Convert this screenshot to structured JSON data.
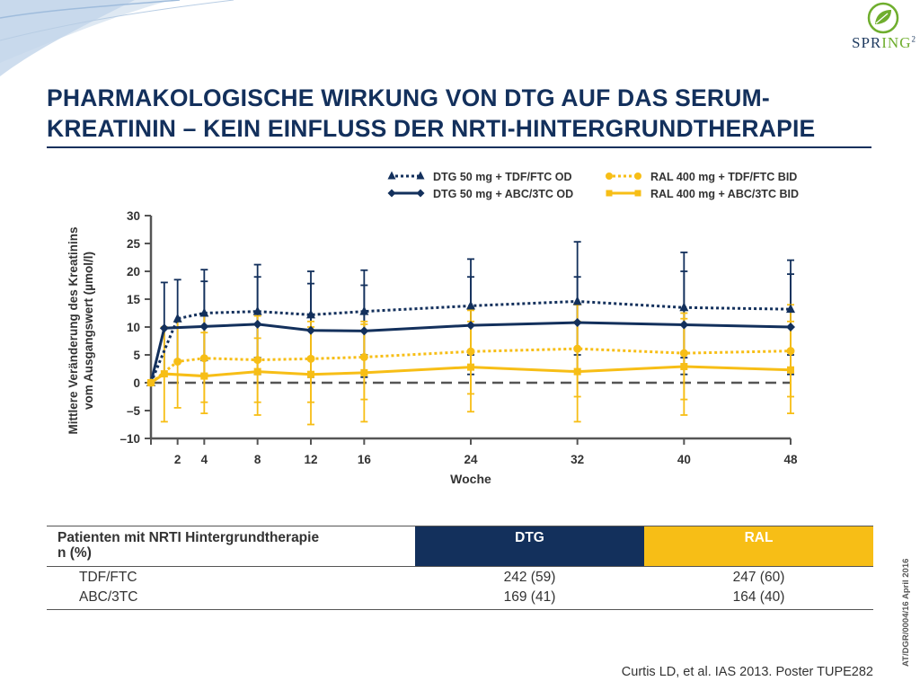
{
  "logo": {
    "text_spr": "SPR",
    "text_ing": "ING",
    "text_sup": "2"
  },
  "title": {
    "line1": "PHARMAKOLOGISCHE WIRKUNG VON DTG AUF DAS SERUM-",
    "line2": "KREATININ – KEIN EINFLUSS DER NRTI-HINTERGRUNDTHERAPIE"
  },
  "colors": {
    "navy": "#13305c",
    "yellow": "#f7be16",
    "gray": "#555555"
  },
  "chart_data": {
    "type": "line",
    "xlabel": "Woche",
    "ylabel_line1": "Mittlere Veränderung des Kreatinins",
    "ylabel_line2": "vom Ausgangswert (µmol/l)",
    "xlim": [
      0,
      48
    ],
    "ylim": [
      -10,
      30
    ],
    "x_ticks": [
      2,
      4,
      8,
      12,
      16,
      24,
      32,
      40,
      48
    ],
    "y_ticks": [
      30,
      25,
      20,
      15,
      10,
      5,
      0,
      -5,
      -10
    ],
    "y_tick_labels": [
      "30",
      "25",
      "20",
      "15",
      "10",
      "5",
      "0",
      "–5",
      "–10"
    ],
    "reference_line": {
      "y": 0,
      "style": "dashed"
    },
    "legend_position": "top",
    "series": [
      {
        "name": "DTG 50 mg + TDF/FTC OD",
        "color": "#13305c",
        "dash": "dotted",
        "marker": "triangle",
        "x": [
          0,
          2,
          4,
          8,
          12,
          16,
          24,
          32,
          40,
          48
        ],
        "y": [
          0,
          11.5,
          12.5,
          12.8,
          12.2,
          12.8,
          13.8,
          14.6,
          13.5,
          13.2
        ],
        "err_low": [
          0,
          4,
          4,
          4.5,
          4.5,
          5,
          5,
          5,
          4.5,
          5
        ],
        "err_high": [
          0,
          18.5,
          20.3,
          21.2,
          20,
          20.2,
          22.2,
          25.3,
          23.4,
          22
        ]
      },
      {
        "name": "DTG 50 mg + ABC/3TC OD",
        "color": "#13305c",
        "dash": "solid",
        "marker": "diamond",
        "x": [
          0,
          1,
          4,
          8,
          12,
          16,
          24,
          32,
          40,
          48
        ],
        "y": [
          0,
          9.8,
          10.1,
          10.5,
          9.4,
          9.3,
          10.3,
          10.8,
          10.4,
          10.0
        ],
        "err_low": [
          0,
          1.5,
          1.5,
          1.5,
          1,
          1,
          1.5,
          2,
          1.5,
          1.5
        ],
        "err_high": [
          0,
          18,
          18.2,
          19,
          17.8,
          17.5,
          19,
          19,
          20,
          19.5
        ]
      },
      {
        "name": "RAL 400 mg + TDF/FTC BID",
        "color": "#f7be16",
        "dash": "dotted",
        "marker": "circle",
        "x": [
          0,
          2,
          4,
          8,
          12,
          16,
          24,
          32,
          40,
          48
        ],
        "y": [
          0,
          3.8,
          4.4,
          4.1,
          4.3,
          4.6,
          5.6,
          6.1,
          5.3,
          5.7
        ],
        "err_low": [
          0,
          -4.5,
          -3.5,
          -3.5,
          -3.5,
          -3,
          -2,
          -2.5,
          -3,
          -2.5
        ],
        "err_high": [
          0,
          11,
          12,
          12,
          11,
          11,
          13,
          14,
          12.5,
          14
        ]
      },
      {
        "name": "RAL 400 mg + ABC/3TC BID",
        "color": "#f7be16",
        "dash": "solid",
        "marker": "square",
        "x": [
          0,
          1,
          4,
          8,
          12,
          16,
          24,
          32,
          40,
          48
        ],
        "y": [
          0,
          1.6,
          1.2,
          2.0,
          1.5,
          1.8,
          2.8,
          2.0,
          2.9,
          2.3
        ],
        "err_low": [
          0,
          -7,
          -5.5,
          -5.8,
          -7.5,
          -7,
          -5.2,
          -7,
          -5.8,
          -5.5
        ],
        "err_high": [
          0,
          10,
          9,
          8,
          10,
          10.5,
          11,
          11,
          11.5,
          11
        ]
      }
    ]
  },
  "table": {
    "header": {
      "label_line1": "Patienten mit NRTI Hintergrundtherapie",
      "label_line2": "n (%)",
      "dtg": "DTG",
      "ral": "RAL"
    },
    "rows": [
      {
        "label": "TDF/FTC",
        "dtg": "242 (59)",
        "ral": "247 (60)"
      },
      {
        "label": "ABC/3TC",
        "dtg": "169 (41)",
        "ral": "164 (40)"
      }
    ]
  },
  "citation": "Curtis LD, et al. IAS 2013. Poster TUPE282",
  "doc_code": "AT/DGR/0004/16  April 2016"
}
